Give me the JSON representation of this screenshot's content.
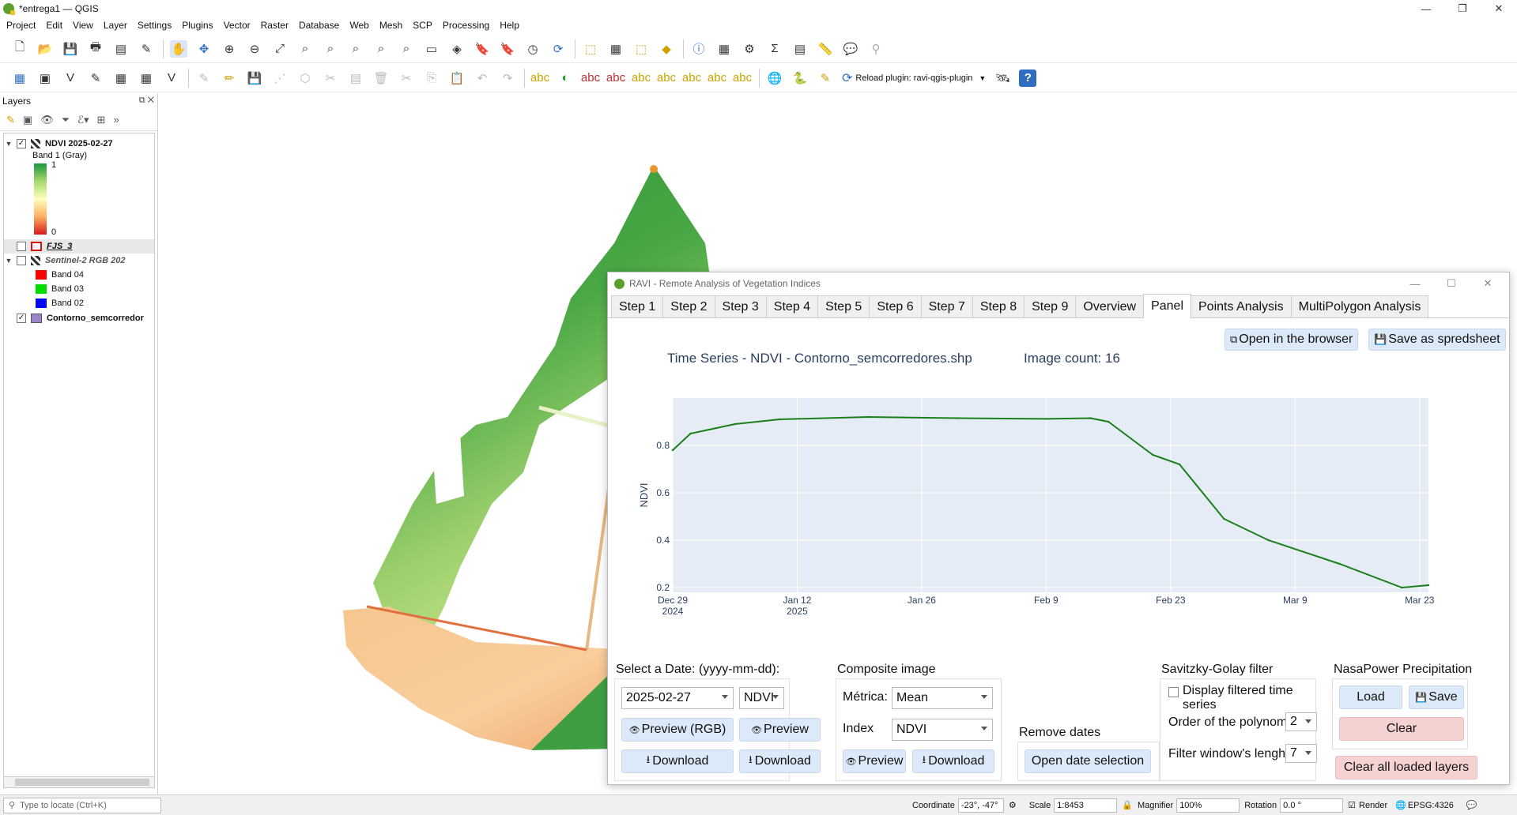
{
  "window": {
    "title": "*entrega1 — QGIS",
    "controls": [
      "—",
      "❐",
      "✕"
    ]
  },
  "menu": [
    "Project",
    "Edit",
    "View",
    "Layer",
    "Settings",
    "Plugins",
    "Vector",
    "Raster",
    "Database",
    "Web",
    "Mesh",
    "SCP",
    "Processing",
    "Help"
  ],
  "toolbar2": {
    "reload_label": "Reload plugin: ravi-qgis-plugin"
  },
  "layers_panel": {
    "title": "Layers",
    "items": [
      {
        "name": "NDVI 2025-02-27",
        "checked": true,
        "bold": true
      },
      {
        "name": "Band 1 (Gray)"
      },
      {
        "name": "1"
      },
      {
        "name": "0"
      },
      {
        "name": "FJS_3",
        "checked": false
      },
      {
        "name": "Sentinel-2 RGB 202",
        "checked": false
      },
      {
        "name": "Band 04",
        "color": "#ff0000"
      },
      {
        "name": "Band 03",
        "color": "#00dd00"
      },
      {
        "name": "Band 02",
        "color": "#0000ff"
      },
      {
        "name": "Contorno_semcorredor",
        "checked": true,
        "color": "#9b85c9"
      }
    ]
  },
  "statusbar": {
    "locator_placeholder": "Type to locate (Ctrl+K)",
    "coordinate_label": "Coordinate",
    "coordinate_value": "-23°, -47°",
    "scale_label": "Scale",
    "scale_value": "1:8453",
    "magnifier_label": "Magnifier",
    "magnifier_value": "100%",
    "rotation_label": "Rotation",
    "rotation_value": "0.0 °",
    "render_label": "Render",
    "crs": "EPSG:4326"
  },
  "ravi": {
    "title": "RAVI - Remote Analysis of Vegetation Indices",
    "tabs": [
      "Step 1",
      "Step 2",
      "Step 3",
      "Step 4",
      "Step 5",
      "Step 6",
      "Step 7",
      "Step 8",
      "Step 9",
      "Overview",
      "Panel",
      "Points Analysis",
      "MultiPolygon Analysis"
    ],
    "active_tab": "Panel",
    "open_browser_label": "Open in the browser",
    "save_spreadsheet_label": "Save as spredsheet",
    "select_date_label": "Select a Date: (yyyy-mm-dd):",
    "date_value": "2025-02-27",
    "index_value": "NDVI",
    "preview_rgb_label": "Preview (RGB)",
    "preview_label": "Preview",
    "download_label": "Download",
    "composite_title": "Composite image",
    "metrica_label": "Métrica:",
    "metrica_value": "Mean",
    "index_label": "Index",
    "composite_index_value": "NDVI",
    "remove_dates_title": "Remove dates",
    "open_date_selection_label": "Open date selection",
    "sg_title": "Savitzky-Golay filter",
    "display_filtered_label": "Display filtered time series",
    "order_label": "Order of the polynomial",
    "order_value": "2",
    "window_label": "Filter window's lenght:",
    "window_value": "7",
    "nasa_title": "NasaPower Precipitation",
    "load_label": "Load",
    "save_label": "Save",
    "clear_label": "Clear",
    "clear_all_label": "Clear all loaded layers"
  },
  "chart_data": {
    "type": "line",
    "title": "Time Series - NDVI - Contorno_semcorredores.shp",
    "subtitle": "Image count: 16",
    "xlabel": "",
    "ylabel": "NDVI",
    "x_tick_labels": [
      [
        "Dec 29",
        "2024"
      ],
      [
        "Jan 12",
        "2025"
      ],
      [
        "Jan 26",
        ""
      ],
      [
        "Feb 9",
        ""
      ],
      [
        "Feb 23",
        ""
      ],
      [
        "Mar 9",
        ""
      ],
      [
        "Mar 23",
        ""
      ]
    ],
    "y_ticks": [
      0.2,
      0.4,
      0.6,
      0.8
    ],
    "ylim": [
      0.18,
      1.0
    ],
    "xlim": [
      "2024-12-29",
      "2025-03-24"
    ],
    "grid": true,
    "colors": {
      "line": "#1a7f1a",
      "plot_bg": "#e5ecf6"
    },
    "series": [
      {
        "x": [
          "2024-12-29",
          "2024-12-31",
          "2025-01-05",
          "2025-01-10",
          "2025-01-20",
          "2025-01-30",
          "2025-02-09",
          "2025-02-14",
          "2025-02-16",
          "2025-02-21",
          "2025-02-24",
          "2025-03-01",
          "2025-03-06",
          "2025-03-14",
          "2025-03-21",
          "2025-03-24"
        ],
        "y": [
          0.78,
          0.85,
          0.89,
          0.91,
          0.92,
          0.915,
          0.912,
          0.915,
          0.9,
          0.76,
          0.72,
          0.49,
          0.4,
          0.3,
          0.2,
          0.21
        ]
      }
    ]
  }
}
